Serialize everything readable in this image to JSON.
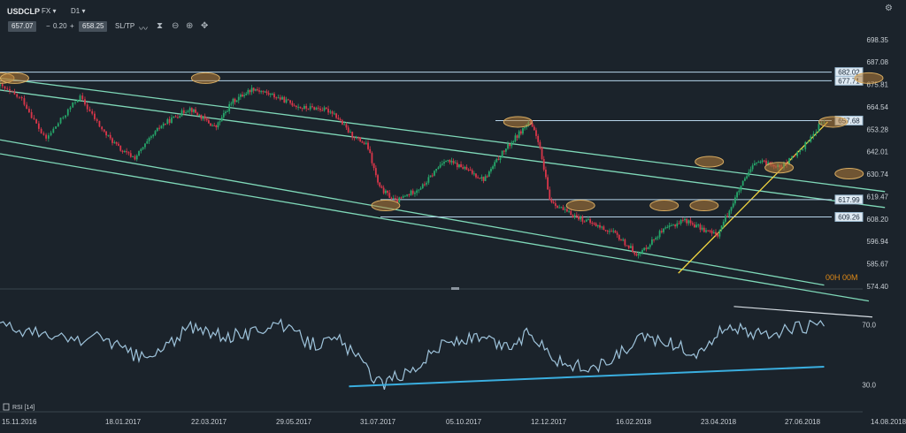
{
  "header": {
    "symbol": "USDCLP",
    "market": "FX",
    "timeframe": "D1",
    "bid": "657.07",
    "spread_minus": "−",
    "spread": "0.20",
    "spread_plus": "+",
    "ask": "658.25",
    "sltp": "SL/TP",
    "icons": [
      "line-style-icon",
      "indicators-icon",
      "zoom-out-icon",
      "zoom-in-icon",
      "crosshair-icon",
      "settings-icon"
    ]
  },
  "colors": {
    "background": "#1b232b",
    "up_candle": "#26a66a",
    "down_candle": "#d9364a",
    "channel": "#7fd8b8",
    "level": "#b6d4ea",
    "support": "#f2d640",
    "ellipse_fill": "#b7803a",
    "ellipse_stroke": "#d9ad62",
    "rsi_line": "#9fc4dc",
    "rsi_support": "#3aaedf",
    "rsi_resistance": "#d6dde3",
    "timer": "#e08a17",
    "text": "#c8ced4"
  },
  "chart_data": [
    {
      "type": "candlestick",
      "title": "USDCLP",
      "ylim": [
        574.4,
        700.5
      ],
      "y_ticks": [
        "698.35",
        "687.08",
        "675.81",
        "664.54",
        "653.28",
        "642.01",
        "630.74",
        "619.47",
        "608.20",
        "596.94",
        "585.67",
        "574.40"
      ],
      "levels": [
        {
          "label": "682.02",
          "value": 682.02
        },
        {
          "label": "677.71",
          "value": 677.71
        },
        {
          "label": "657.68",
          "value": 657.68
        },
        {
          "label": "617.99",
          "value": 617.99
        },
        {
          "label": "609.26",
          "value": 609.26
        }
      ],
      "x_tick_labels": [
        "15.11.2016",
        "18.01.2017",
        "22.03.2017",
        "29.05.2017",
        "31.07.2017",
        "05.10.2017",
        "12.12.2017",
        "16.02.2018",
        "23.04.2018",
        "27.06.2018",
        "14.08.2018"
      ],
      "timer": "00H 00M",
      "close_path": [
        [
          "15.11.2016",
          675
        ],
        [
          "29.11.2016",
          668
        ],
        [
          "13.12.2016",
          648
        ],
        [
          "03.01.2017",
          670
        ],
        [
          "18.01.2017",
          652
        ],
        [
          "01.02.2017",
          642
        ],
        [
          "10.02.2017",
          639
        ],
        [
          "01.03.2017",
          655
        ],
        [
          "22.03.2017",
          664
        ],
        [
          "12.04.2017",
          654
        ],
        [
          "25.04.2017",
          667
        ],
        [
          "12.05.2017",
          674
        ],
        [
          "29.05.2017",
          670
        ],
        [
          "19.06.2017",
          664
        ],
        [
          "30.06.2017",
          664
        ],
        [
          "12.07.2017",
          662
        ],
        [
          "25.07.2017",
          651
        ],
        [
          "07.08.2017",
          645
        ],
        [
          "16.08.2017",
          624
        ],
        [
          "29.08.2017",
          617
        ],
        [
          "19.09.2017",
          625
        ],
        [
          "05.10.2017",
          638
        ],
        [
          "20.10.2017",
          634
        ],
        [
          "06.11.2017",
          628
        ],
        [
          "20.11.2017",
          641
        ],
        [
          "12.12.2017",
          657
        ],
        [
          "19.12.2017",
          648
        ],
        [
          "28.12.2017",
          618
        ],
        [
          "09.01.2018",
          612
        ],
        [
          "30.01.2018",
          606
        ],
        [
          "16.02.2018",
          601
        ],
        [
          "07.03.2018",
          590
        ],
        [
          "23.03.2018",
          601
        ],
        [
          "11.04.2018",
          608
        ],
        [
          "23.04.2018",
          604
        ],
        [
          "07.05.2018",
          600
        ],
        [
          "25.05.2018",
          624
        ],
        [
          "06.06.2018",
          637
        ],
        [
          "27.06.2018",
          635
        ],
        [
          "06.07.2018",
          642
        ],
        [
          "18.07.2018",
          656
        ],
        [
          "20.07.2018",
          657
        ]
      ],
      "trendlines": [
        {
          "kind": "channel",
          "points": [
            [
              "15.11.2016",
              679
            ],
            [
              "23.08.2018",
              622
            ]
          ]
        },
        {
          "kind": "channel",
          "points": [
            [
              "15.11.2016",
              673
            ],
            [
              "23.08.2018",
              614
            ]
          ]
        },
        {
          "kind": "channel",
          "points": [
            [
              "15.11.2016",
              648
            ],
            [
              "20.07.2018",
              575
            ]
          ]
        },
        {
          "kind": "channel",
          "points": [
            [
              "15.11.2016",
              641
            ],
            [
              "14.08.2018",
              567
            ]
          ]
        },
        {
          "kind": "support",
          "points": [
            [
              "07.04.2018",
              581
            ],
            [
              "22.07.2018",
              657
            ]
          ]
        }
      ],
      "highlights": [
        [
          "15.11.2016",
          679
        ],
        [
          "24.11.2016",
          679
        ],
        [
          "04.04.2017",
          679
        ],
        [
          "14.08.2018",
          679
        ],
        [
          "21.08.2017",
          615
        ],
        [
          "03.12.2017",
          657
        ],
        [
          "21.01.2018",
          615
        ],
        [
          "27.03.2018",
          615
        ],
        [
          "27.04.2018",
          615
        ],
        [
          "01.05.2018",
          637
        ],
        [
          "24.06.2018",
          634
        ],
        [
          "25.07.2018",
          657
        ],
        [
          "03.08.2018",
          631
        ]
      ]
    },
    {
      "type": "line",
      "title": "RSI [14]",
      "series": [
        {
          "name": "RSI [14]",
          "x": [
            "15.11.2016",
            "01.12.2016",
            "15.12.2016",
            "04.01.2017",
            "18.01.2017",
            "08.02.2017",
            "22.02.2017",
            "22.03.2017",
            "19.04.2017",
            "10.05.2017",
            "29.05.2017",
            "26.06.2017",
            "17.07.2017",
            "31.07.2017",
            "18.08.2017",
            "13.09.2017",
            "05.10.2017",
            "02.11.2017",
            "24.11.2017",
            "06.12.2017",
            "12.12.2017",
            "05.01.2018",
            "01.02.2018",
            "16.02.2018",
            "13.03.2018",
            "30.03.2018",
            "23.04.2018",
            "03.05.2018",
            "17.05.2018",
            "01.06.2018",
            "27.06.2018",
            "20.07.2018"
          ],
          "values": [
            70,
            66,
            62,
            60,
            62,
            50,
            48,
            68,
            62,
            64,
            72,
            57,
            60,
            47,
            30,
            42,
            58,
            61,
            55,
            60,
            66,
            45,
            40,
            48,
            62,
            58,
            50,
            60,
            71,
            62,
            66,
            70
          ]
        }
      ],
      "ylim": [
        18,
        86
      ],
      "y_ticks": [
        "70.0",
        "30.0"
      ],
      "trendlines": [
        {
          "kind": "support",
          "points": [
            [
              "24.07.2017",
              29
            ],
            [
              "20.07.2018",
              42
            ]
          ]
        },
        {
          "kind": "resistance",
          "points": [
            [
              "20.05.2018",
              82
            ],
            [
              "16.08.2018",
              75
            ]
          ]
        }
      ]
    }
  ]
}
